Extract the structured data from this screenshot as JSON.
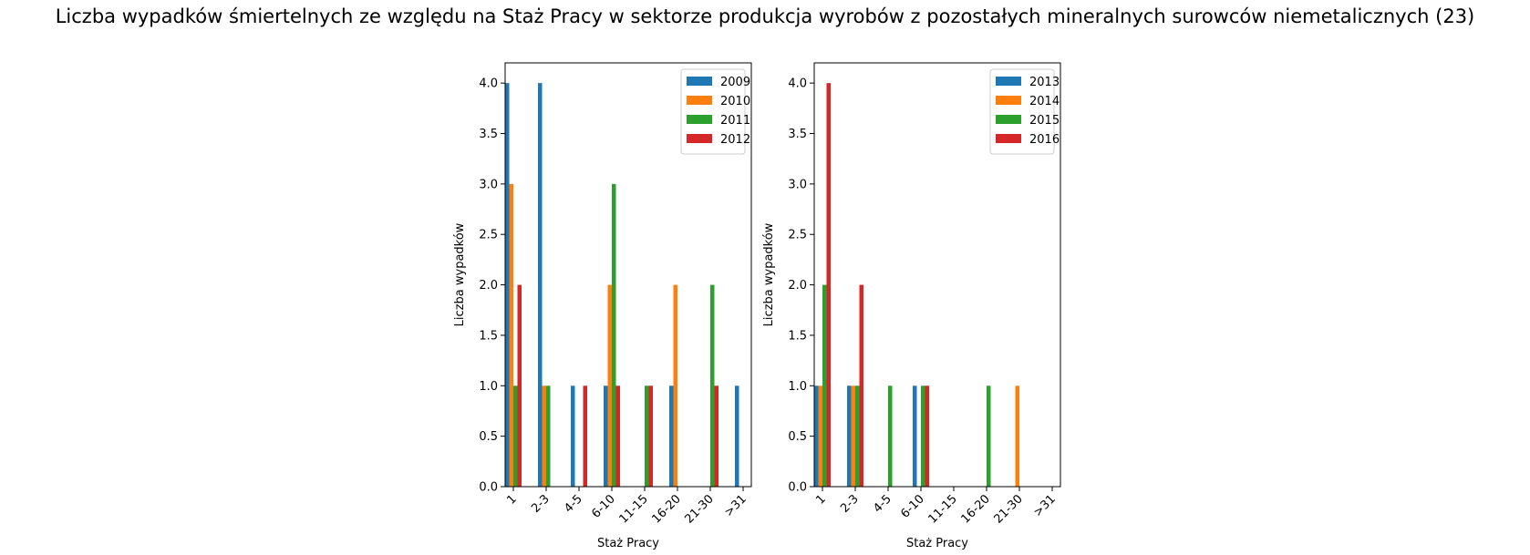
{
  "figure": {
    "title": "Liczba wypadków śmiertelnych ze względu na Staż Pracy w sektorze produkcja wyrobów z pozostałych mineralnych surowców niemetalicznych (23)"
  },
  "chart_data": [
    {
      "type": "bar",
      "xlabel": "Staż Pracy",
      "ylabel": "Liczba wypadków",
      "categories": [
        "1",
        "2-3",
        "4-5",
        "6-10",
        "11-15",
        "16-20",
        "21-30",
        ">31"
      ],
      "ylim": [
        0,
        4.2
      ],
      "yticks": [
        0.0,
        0.5,
        1.0,
        1.5,
        2.0,
        2.5,
        3.0,
        3.5,
        4.0
      ],
      "legend_position": "top-right",
      "grid": false,
      "series": [
        {
          "name": "2009",
          "color": "#1f77b4",
          "values": [
            4,
            4,
            1,
            1,
            0,
            1,
            0,
            1
          ]
        },
        {
          "name": "2010",
          "color": "#ff7f0e",
          "values": [
            3,
            1,
            0,
            2,
            0,
            2,
            0,
            0
          ]
        },
        {
          "name": "2011",
          "color": "#2ca02c",
          "values": [
            1,
            1,
            0,
            3,
            1,
            0,
            2,
            0
          ]
        },
        {
          "name": "2012",
          "color": "#d62728",
          "values": [
            2,
            0,
            1,
            1,
            1,
            0,
            1,
            0
          ]
        }
      ]
    },
    {
      "type": "bar",
      "xlabel": "Staż Pracy",
      "ylabel": "Liczba wypadków",
      "categories": [
        "1",
        "2-3",
        "4-5",
        "6-10",
        "11-15",
        "16-20",
        "21-30",
        ">31"
      ],
      "ylim": [
        0,
        4.2
      ],
      "yticks": [
        0.0,
        0.5,
        1.0,
        1.5,
        2.0,
        2.5,
        3.0,
        3.5,
        4.0
      ],
      "legend_position": "top-right",
      "grid": false,
      "series": [
        {
          "name": "2013",
          "color": "#1f77b4",
          "values": [
            1,
            1,
            0,
            1,
            0,
            0,
            0,
            0
          ]
        },
        {
          "name": "2014",
          "color": "#ff7f0e",
          "values": [
            1,
            1,
            0,
            0,
            0,
            0,
            1,
            0
          ]
        },
        {
          "name": "2015",
          "color": "#2ca02c",
          "values": [
            2,
            1,
            1,
            1,
            0,
            1,
            0,
            0
          ]
        },
        {
          "name": "2016",
          "color": "#d62728",
          "values": [
            4,
            2,
            0,
            1,
            0,
            0,
            0,
            0
          ]
        }
      ]
    }
  ]
}
